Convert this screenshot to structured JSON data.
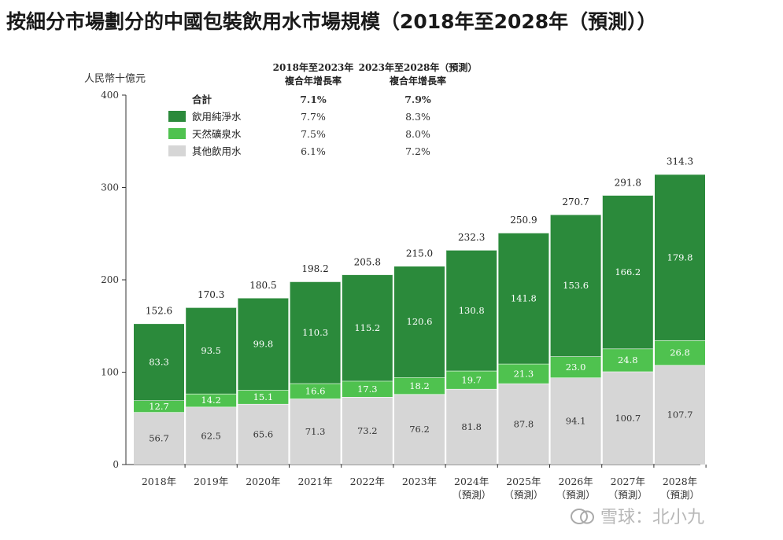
{
  "title": "按細分市場劃分的中國包裝飲用水市場規模（2018年至2028年（預測））",
  "watermark": "雪球：北小九",
  "colors": {
    "purified": "#2b8a3b",
    "mineral": "#4fc24f",
    "other": "#d6d6d6",
    "axis": "#333333"
  },
  "chart_data": {
    "type": "bar",
    "stacked": true,
    "title": "按細分市場劃分的中國包裝飲用水市場規模（2018年至2028年（預測））",
    "ylabel": "人民幣十億元",
    "ylim": [
      0,
      400
    ],
    "yticks": [
      0,
      100,
      200,
      300,
      400
    ],
    "grid": false,
    "categories": [
      [
        "2018年"
      ],
      [
        "2019年"
      ],
      [
        "2020年"
      ],
      [
        "2021年"
      ],
      [
        "2022年"
      ],
      [
        "2023年"
      ],
      [
        "2024年",
        "（預測）"
      ],
      [
        "2025年",
        "（預測）"
      ],
      [
        "2026年",
        "（預測）"
      ],
      [
        "2027年",
        "（預測）"
      ],
      [
        "2028年",
        "（預測）"
      ]
    ],
    "series": [
      {
        "name": "其他飲用水",
        "color": "#d6d6d6",
        "label_color": "#333333",
        "values": [
          56.7,
          62.5,
          65.6,
          71.3,
          73.2,
          76.2,
          81.8,
          87.8,
          94.1,
          100.7,
          107.7
        ]
      },
      {
        "name": "天然礦泉水",
        "color": "#4fc24f",
        "label_color": "#ffffff",
        "values": [
          12.7,
          14.2,
          15.1,
          16.6,
          17.3,
          18.2,
          19.7,
          21.3,
          23.0,
          24.8,
          26.8
        ]
      },
      {
        "name": "飲用純淨水",
        "color": "#2b8a3b",
        "label_color": "#ffffff",
        "values": [
          83.3,
          93.5,
          99.8,
          110.3,
          115.2,
          120.6,
          130.8,
          141.8,
          153.6,
          166.2,
          179.8
        ]
      }
    ],
    "totals": [
      "152.6",
      "170.3",
      "180.5",
      "198.2",
      "205.8",
      "215.0",
      "232.3",
      "250.9",
      "270.7",
      "291.8",
      "314.3"
    ],
    "legend": {
      "placement": "top-left",
      "headers": [
        [
          "2018年至2023年",
          "複合年增長率"
        ],
        [
          "2023年至2028年（預測）",
          "複合年增長率"
        ]
      ],
      "rows": [
        {
          "label": "合計",
          "swatch": null,
          "bold": true,
          "cagr_2018_2023": "7.1%",
          "cagr_2023_2028": "7.9%"
        },
        {
          "label": "飲用純淨水",
          "swatch": "#2b8a3b",
          "bold": false,
          "cagr_2018_2023": "7.7%",
          "cagr_2023_2028": "8.3%"
        },
        {
          "label": "天然礦泉水",
          "swatch": "#4fc24f",
          "bold": false,
          "cagr_2018_2023": "7.5%",
          "cagr_2023_2028": "8.0%"
        },
        {
          "label": "其他飲用水",
          "swatch": "#d6d6d6",
          "bold": false,
          "cagr_2018_2023": "6.1%",
          "cagr_2023_2028": "7.2%"
        }
      ]
    }
  }
}
